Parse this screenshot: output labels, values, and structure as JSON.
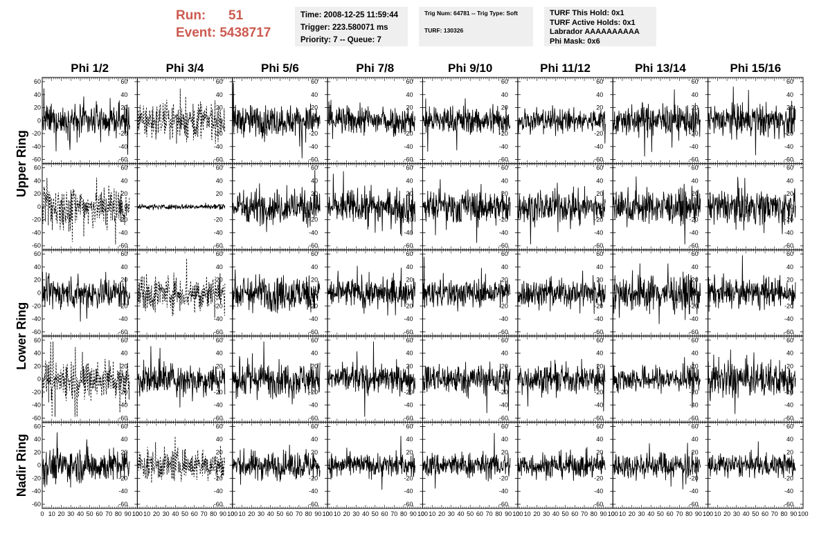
{
  "run": {
    "run_label": "Run:",
    "run_value": "51",
    "event_label": "Event:",
    "event_value": "5438717"
  },
  "time_box": {
    "time": "Time: 2008-12-25 11:59:44",
    "trigger": "Trigger: 223.580071 ms",
    "priority": "Priority: 7 -- Queue: 7"
  },
  "trig_box": {
    "trig": "Trig Num: 64781 -- Trig Type: Soft",
    "turf": "TURF: 130326"
  },
  "turf_box": {
    "this_hold": "TURF This Hold: 0x1",
    "active_holds": "TURF Active Holds: 0x1",
    "labrador": "Labrador AAAAAAAAAA",
    "phi_mask": "Phi Mask: 0x6"
  },
  "colors": {
    "run_text": "#cc5a4f",
    "info_bg": "#efefef",
    "trace": "#000000"
  },
  "chart_data": {
    "type": "line",
    "columns": [
      "Phi 1/2",
      "Phi 3/4",
      "Phi 5/6",
      "Phi 7/8",
      "Phi 9/10",
      "Phi 11/12",
      "Phi 13/14",
      "Phi 15/16"
    ],
    "rows": [
      "Upper Ring",
      "Lower Ring",
      "Nadir Ring"
    ],
    "panel_rows": 5,
    "xlim": [
      0,
      100
    ],
    "ylim": [
      -60,
      60
    ],
    "x_ticks": [
      0,
      10,
      20,
      30,
      40,
      50,
      60,
      70,
      80,
      90,
      100
    ],
    "x_tick_labels": [
      "0",
      "10",
      "20",
      "30",
      "40",
      "50",
      "60",
      "70",
      "80",
      "90",
      "100"
    ],
    "y_ticks": [
      -60,
      -40,
      -20,
      0,
      20,
      40,
      60
    ],
    "y_tick_labels": [
      "-60",
      "-40",
      "-20",
      "0",
      "20",
      "40",
      "60"
    ],
    "samples_per_trace": 260,
    "x_extent": 92,
    "panels": [
      [
        {
          "amp": 12,
          "style": "solid"
        },
        {
          "amp": 14,
          "style": "dashed"
        },
        {
          "amp": 12,
          "style": "solid"
        },
        {
          "amp": 11,
          "style": "solid"
        },
        {
          "amp": 11,
          "style": "solid"
        },
        {
          "amp": 9,
          "style": "solid"
        },
        {
          "amp": 12,
          "style": "solid"
        },
        {
          "amp": 13,
          "style": "solid"
        }
      ],
      [
        {
          "amp": 17,
          "style": "dashed"
        },
        {
          "amp": 2,
          "style": "solid"
        },
        {
          "amp": 13,
          "style": "solid"
        },
        {
          "amp": 13,
          "style": "solid"
        },
        {
          "amp": 13,
          "style": "solid"
        },
        {
          "amp": 12,
          "style": "solid"
        },
        {
          "amp": 13,
          "style": "solid"
        },
        {
          "amp": 13,
          "style": "solid"
        }
      ],
      [
        {
          "amp": 12,
          "style": "solid"
        },
        {
          "amp": 14,
          "style": "dashed"
        },
        {
          "amp": 14,
          "style": "solid"
        },
        {
          "amp": 11,
          "style": "solid"
        },
        {
          "amp": 11,
          "style": "solid"
        },
        {
          "amp": 11,
          "style": "solid"
        },
        {
          "amp": 14,
          "style": "solid"
        },
        {
          "amp": 11,
          "style": "solid"
        }
      ],
      [
        {
          "amp": 16,
          "style": "dashed"
        },
        {
          "amp": 12,
          "style": "solid"
        },
        {
          "amp": 13,
          "style": "solid"
        },
        {
          "amp": 11,
          "style": "solid"
        },
        {
          "amp": 12,
          "style": "solid"
        },
        {
          "amp": 11,
          "style": "solid"
        },
        {
          "amp": 10,
          "style": "solid"
        },
        {
          "amp": 14,
          "style": "solid"
        }
      ],
      [
        {
          "amp": 13,
          "style": "solid"
        },
        {
          "amp": 12,
          "style": "dashed"
        },
        {
          "amp": 11,
          "style": "solid"
        },
        {
          "amp": 9,
          "style": "solid"
        },
        {
          "amp": 10,
          "style": "solid"
        },
        {
          "amp": 10,
          "style": "solid"
        },
        {
          "amp": 10,
          "style": "solid"
        },
        {
          "amp": 9,
          "style": "solid"
        }
      ]
    ]
  }
}
